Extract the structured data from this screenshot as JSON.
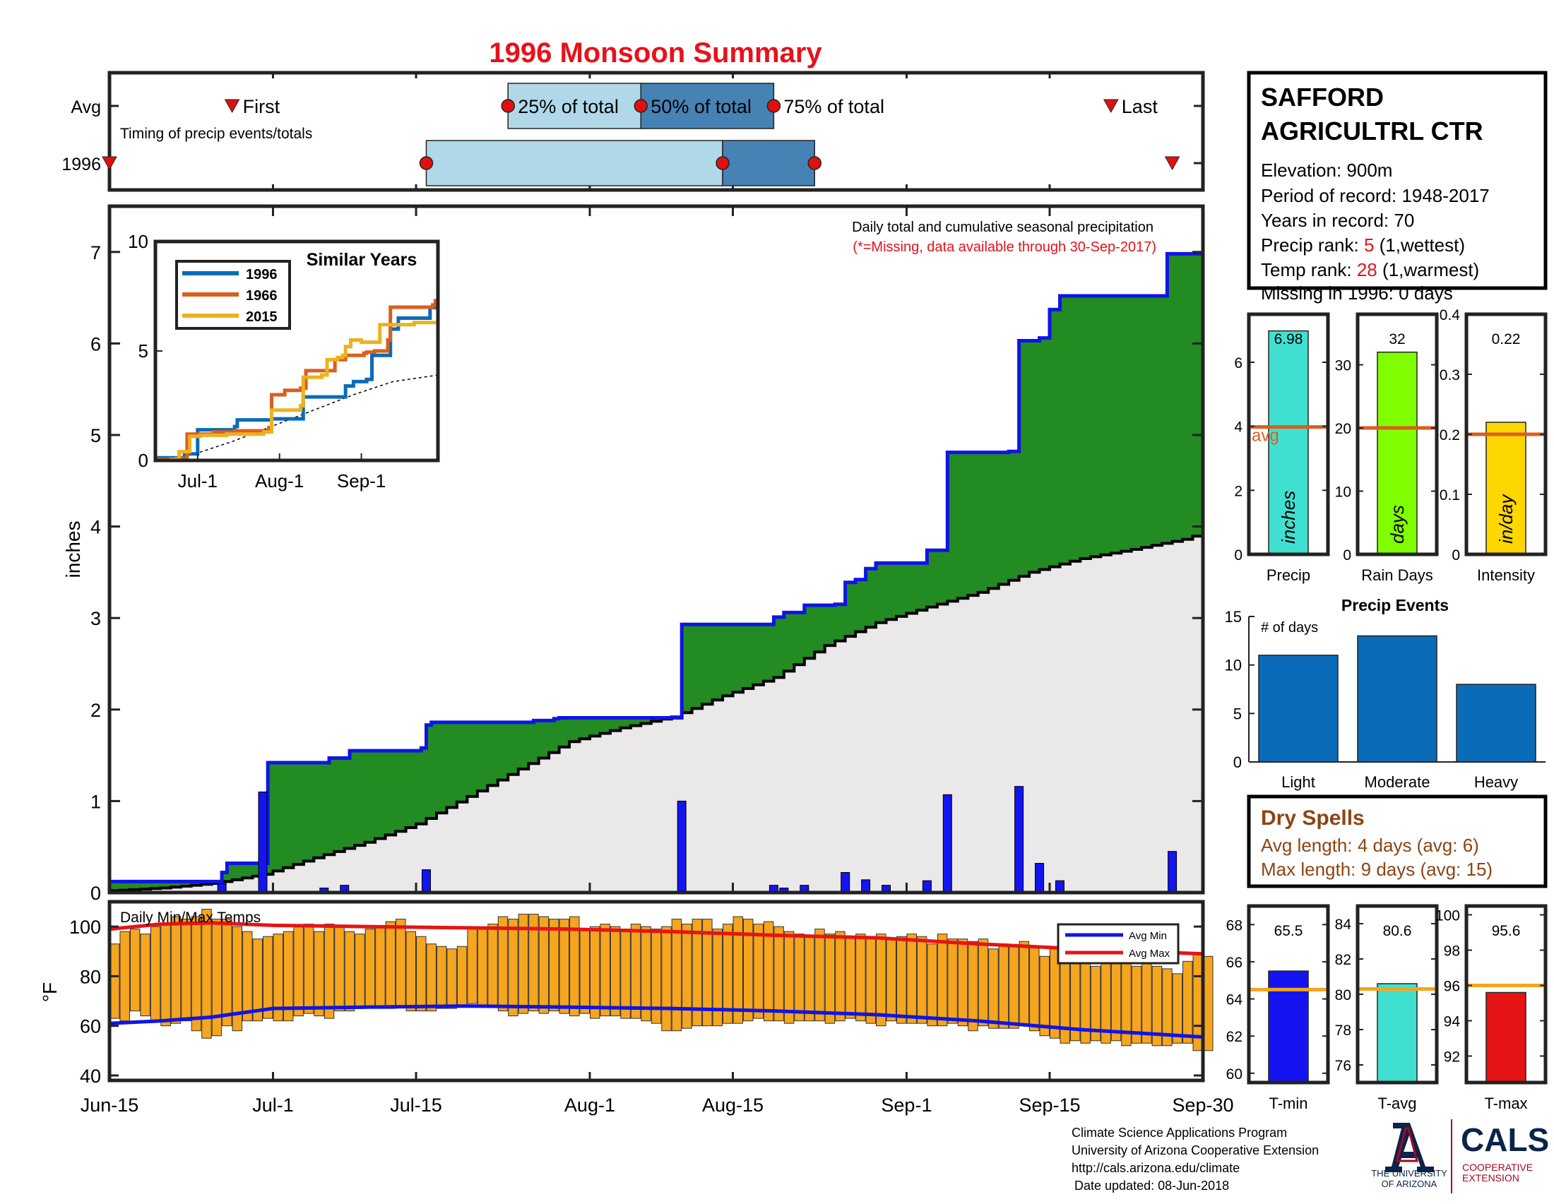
{
  "title": "1996 Monsoon Summary",
  "station": {
    "name_line1": "SAFFORD",
    "name_line2": "AGRICULTRL CTR",
    "elevation_text": "Elevation: 900m",
    "period_text": "Period of record: 1948-2017",
    "years_text": "Years in record: 70",
    "precip_rank_label": "Precip rank: ",
    "precip_rank_value": "5",
    "precip_rank_suffix": " (1,wettest)",
    "temp_rank_label": "Temp rank: ",
    "temp_rank_value": "28",
    "temp_rank_suffix": " (1,warmest)",
    "missing_text": "Missing in 1996: 0 days"
  },
  "colors": {
    "title_red": "#e8111a",
    "green_fill": "#228b22",
    "blue_line": "#0f14e6",
    "gray_fill": "#eae8e8",
    "light_blue": "#b0d8e8",
    "mid_blue": "#4682b4",
    "bar_blue": "#1414f0",
    "orange": "#f5a51e",
    "avg_orange": "#d95f1e",
    "temp_red": "#e61414",
    "precip_cyan": "#40e0d0",
    "raindays_green": "#80ff00",
    "intensity_yellow": "#ffd700",
    "events_blue": "#0a6cb8",
    "dry_brown": "#8b4513",
    "uofa_navy": "#0c234b",
    "uofa_red": "#ab0520"
  },
  "chart_data": [
    {
      "id": "timing",
      "type": "bar",
      "title": "",
      "annotation": "Timing of precip events/totals",
      "rows": [
        "Avg",
        "1996"
      ],
      "x_ticks": [
        "Jun-15",
        "Jul-1",
        "Jul-15",
        "Aug-1",
        "Aug-15",
        "Sep-1",
        "Sep-15",
        "Sep-30"
      ],
      "avg": {
        "first": "Jun-27",
        "q25": "Jul-24",
        "q50": "Aug-6",
        "q75": "Aug-19",
        "last": "Sep-21"
      },
      "year": {
        "first": "Jun-15",
        "q25": "Jul-16",
        "q50": "Aug-14",
        "q75": "Aug-23",
        "last": "Sep-27"
      },
      "labels": {
        "first": "First",
        "q25": "25% of total",
        "q50": "50% of total",
        "q75": "75% of total",
        "last": "Last"
      }
    },
    {
      "id": "precip",
      "type": "area",
      "title": "Daily total and cumulative seasonal precipitation",
      "subtitle": "(*=Missing, data available through 30-Sep-2017)",
      "ylabel": "inches",
      "ylim": [
        0,
        7.5
      ],
      "yticks": [
        0,
        1,
        2,
        3,
        4,
        5,
        6,
        7
      ],
      "x_ticks": [
        {
          "day": 0,
          "label": "Jun-15"
        },
        {
          "day": 16,
          "label": "Jul-1"
        },
        {
          "day": 30,
          "label": "Jul-15"
        },
        {
          "day": 47,
          "label": "Aug-1"
        },
        {
          "day": 61,
          "label": "Aug-15"
        },
        {
          "day": 78,
          "label": "Sep-1"
        },
        {
          "day": 92,
          "label": "Sep-15"
        },
        {
          "day": 107,
          "label": "Sep-30"
        }
      ],
      "daily_precip": [
        {
          "day": 11,
          "value": 0.1
        },
        {
          "day": 15,
          "value": 1.1
        },
        {
          "day": 21,
          "value": 0.05
        },
        {
          "day": 23,
          "value": 0.08
        },
        {
          "day": 31,
          "value": 0.25
        },
        {
          "day": 56,
          "value": 1.0
        },
        {
          "day": 65,
          "value": 0.08
        },
        {
          "day": 66,
          "value": 0.05
        },
        {
          "day": 68,
          "value": 0.08
        },
        {
          "day": 72,
          "value": 0.22
        },
        {
          "day": 74,
          "value": 0.14
        },
        {
          "day": 76,
          "value": 0.08
        },
        {
          "day": 80,
          "value": 0.13
        },
        {
          "day": 82,
          "value": 1.07
        },
        {
          "day": 89,
          "value": 1.16
        },
        {
          "day": 91,
          "value": 0.32
        },
        {
          "day": 93,
          "value": 0.13
        },
        {
          "day": 104,
          "value": 0.45
        }
      ],
      "cumulative_1996": [
        [
          0,
          0.12
        ],
        [
          10,
          0.12
        ],
        [
          11,
          0.22
        ],
        [
          11.5,
          0.32
        ],
        [
          15,
          0.32
        ],
        [
          15.5,
          1.42
        ],
        [
          21,
          1.42
        ],
        [
          21.5,
          1.47
        ],
        [
          23,
          1.47
        ],
        [
          23.5,
          1.55
        ],
        [
          30,
          1.55
        ],
        [
          30.5,
          1.58
        ],
        [
          31,
          1.83
        ],
        [
          31.5,
          1.86
        ],
        [
          41,
          1.86
        ],
        [
          41.5,
          1.88
        ],
        [
          43,
          1.88
        ],
        [
          43.5,
          1.9
        ],
        [
          44,
          1.91
        ],
        [
          55,
          1.91
        ],
        [
          56,
          2.93
        ],
        [
          64,
          2.93
        ],
        [
          65,
          3.01
        ],
        [
          66,
          3.06
        ],
        [
          68,
          3.14
        ],
        [
          71,
          3.15
        ],
        [
          72,
          3.39
        ],
        [
          73,
          3.42
        ],
        [
          74,
          3.54
        ],
        [
          75,
          3.6
        ],
        [
          80,
          3.74
        ],
        [
          81,
          3.74
        ],
        [
          82,
          4.81
        ],
        [
          88,
          4.82
        ],
        [
          89,
          6.03
        ],
        [
          91,
          6.06
        ],
        [
          92,
          6.37
        ],
        [
          93,
          6.52
        ],
        [
          103,
          6.52
        ],
        [
          103.5,
          6.98
        ],
        [
          107,
          6.98
        ]
      ],
      "cumulative_avg": [
        [
          0,
          0.02
        ],
        [
          5,
          0.05
        ],
        [
          10,
          0.1
        ],
        [
          15,
          0.2
        ],
        [
          20,
          0.38
        ],
        [
          25,
          0.55
        ],
        [
          30,
          0.75
        ],
        [
          35,
          1.05
        ],
        [
          40,
          1.35
        ],
        [
          45,
          1.65
        ],
        [
          50,
          1.8
        ],
        [
          55,
          1.92
        ],
        [
          60,
          2.15
        ],
        [
          65,
          2.35
        ],
        [
          70,
          2.7
        ],
        [
          75,
          2.95
        ],
        [
          80,
          3.12
        ],
        [
          85,
          3.28
        ],
        [
          90,
          3.5
        ],
        [
          95,
          3.65
        ],
        [
          100,
          3.75
        ],
        [
          105,
          3.86
        ],
        [
          107,
          3.93
        ]
      ]
    },
    {
      "id": "similar_years",
      "type": "line",
      "title": "Similar Years",
      "ylim": [
        0,
        10
      ],
      "yticks": [
        0,
        5,
        10
      ],
      "x_ticks": [
        {
          "day": 16,
          "label": "Jul-1"
        },
        {
          "day": 47,
          "label": "Aug-1"
        },
        {
          "day": 78,
          "label": "Sep-1"
        }
      ],
      "series": [
        {
          "name": "1996",
          "color": "#0a6cb8",
          "points": [
            [
              0,
              0.12
            ],
            [
              10,
              0.12
            ],
            [
              11,
              0.3
            ],
            [
              15,
              0.3
            ],
            [
              16,
              1.4
            ],
            [
              30,
              1.55
            ],
            [
              31,
              1.85
            ],
            [
              44,
              1.9
            ],
            [
              56,
              2.9
            ],
            [
              72,
              3.4
            ],
            [
              75,
              3.6
            ],
            [
              80,
              3.7
            ],
            [
              82,
              4.8
            ],
            [
              89,
              6.0
            ],
            [
              92,
              6.5
            ],
            [
              103,
              6.5
            ],
            [
              104,
              6.98
            ],
            [
              107,
              6.98
            ]
          ]
        },
        {
          "name": "1966",
          "color": "#d95f1e",
          "points": [
            [
              0,
              0.05
            ],
            [
              8,
              0.1
            ],
            [
              12,
              1.2
            ],
            [
              22,
              1.3
            ],
            [
              30,
              1.35
            ],
            [
              43,
              1.5
            ],
            [
              44,
              3.0
            ],
            [
              49,
              3.2
            ],
            [
              55,
              3.3
            ],
            [
              57,
              4.1
            ],
            [
              66,
              4.1
            ],
            [
              68,
              4.6
            ],
            [
              72,
              4.8
            ],
            [
              79,
              4.9
            ],
            [
              80,
              4.95
            ],
            [
              83,
              5.0
            ],
            [
              87,
              5.0
            ],
            [
              88,
              5.5
            ],
            [
              89,
              7.0
            ],
            [
              105,
              7.1
            ],
            [
              106,
              7.3
            ],
            [
              107,
              8.7
            ]
          ]
        },
        {
          "name": "2015",
          "color": "#edb120",
          "points": [
            [
              0,
              0.0
            ],
            [
              6,
              0.05
            ],
            [
              9,
              0.4
            ],
            [
              13,
              1.1
            ],
            [
              17,
              1.15
            ],
            [
              27,
              1.2
            ],
            [
              41,
              1.3
            ],
            [
              44,
              2.3
            ],
            [
              55,
              2.5
            ],
            [
              56,
              3.8
            ],
            [
              63,
              3.9
            ],
            [
              65,
              4.6
            ],
            [
              69,
              4.7
            ],
            [
              71,
              4.8
            ],
            [
              72,
              5.2
            ],
            [
              74,
              5.5
            ],
            [
              78,
              5.4
            ],
            [
              85,
              6.2
            ],
            [
              98,
              6.3
            ],
            [
              107,
              6.4
            ]
          ]
        }
      ],
      "avg_line": [
        [
          0,
          0.02
        ],
        [
          15,
          0.3
        ],
        [
          30,
          0.9
        ],
        [
          45,
          1.6
        ],
        [
          60,
          2.3
        ],
        [
          75,
          3.0
        ],
        [
          90,
          3.6
        ],
        [
          107,
          3.9
        ]
      ]
    },
    {
      "id": "temps",
      "type": "bar",
      "title": "Daily Min/Max Temps",
      "ylabel": "°F",
      "ylim": [
        38,
        110
      ],
      "yticks": [
        40,
        60,
        80,
        100
      ],
      "legend": [
        "Avg Min",
        "Avg Max"
      ],
      "daily_max": [
        93,
        98,
        99,
        97,
        100,
        101,
        104,
        103,
        104,
        107,
        103,
        103,
        100,
        98,
        95,
        96,
        97,
        98,
        100,
        101,
        98,
        101,
        100,
        98,
        97,
        99,
        100,
        102,
        103,
        98,
        96,
        93,
        92,
        91,
        92,
        100,
        99,
        101,
        104,
        103,
        105,
        105,
        104,
        103,
        103,
        104,
        99,
        100,
        101,
        100,
        99,
        101,
        100,
        99,
        100,
        103,
        101,
        103,
        103,
        99,
        101,
        104,
        103,
        101,
        102,
        100,
        98,
        97,
        96,
        99,
        97,
        98,
        96,
        97,
        95,
        97,
        95,
        96,
        97,
        96,
        93,
        97,
        95,
        95,
        94,
        95,
        91,
        93,
        92,
        94,
        92,
        88,
        91,
        89,
        86,
        87,
        84,
        86,
        86,
        88,
        84,
        85,
        84,
        83,
        81,
        86,
        89,
        88
      ],
      "daily_min": [
        63,
        62,
        66,
        64,
        62,
        60,
        61,
        62,
        58,
        55,
        56,
        60,
        58,
        62,
        62,
        63,
        62,
        62,
        64,
        65,
        64,
        63,
        66,
        66,
        67,
        68,
        67,
        67,
        68,
        66,
        66,
        66,
        67,
        67,
        68,
        69,
        68,
        68,
        66,
        64,
        65,
        66,
        65,
        66,
        65,
        64,
        65,
        63,
        64,
        64,
        63,
        63,
        62,
        61,
        58,
        58,
        59,
        60,
        60,
        60,
        61,
        61,
        62,
        63,
        62,
        62,
        61,
        62,
        62,
        62,
        61,
        62,
        63,
        62,
        61,
        60,
        62,
        61,
        61,
        61,
        60,
        60,
        61,
        60,
        58,
        60,
        59,
        59,
        59,
        60,
        58,
        56,
        55,
        53,
        54,
        53,
        54,
        53,
        54,
        52,
        53,
        53,
        52,
        52,
        53,
        53,
        50,
        50
      ],
      "avg_max": [
        [
          0,
          99
        ],
        [
          5,
          101
        ],
        [
          10,
          101.5
        ],
        [
          16,
          100.5
        ],
        [
          25,
          100
        ],
        [
          35,
          99.5
        ],
        [
          45,
          99
        ],
        [
          55,
          98
        ],
        [
          65,
          96.5
        ],
        [
          75,
          95.5
        ],
        [
          85,
          93
        ],
        [
          95,
          91
        ],
        [
          107,
          89
        ]
      ],
      "avg_min": [
        [
          0,
          61
        ],
        [
          5,
          62
        ],
        [
          10,
          63.5
        ],
        [
          16,
          67
        ],
        [
          25,
          67.5
        ],
        [
          35,
          68
        ],
        [
          45,
          67.5
        ],
        [
          55,
          67
        ],
        [
          65,
          66
        ],
        [
          75,
          64.5
        ],
        [
          85,
          62
        ],
        [
          95,
          58.5
        ],
        [
          107,
          55.5
        ]
      ]
    },
    {
      "id": "precip_stat",
      "type": "bar",
      "category": "Precip",
      "bar_label": "inches",
      "value": 6.98,
      "avg": 3.98,
      "avg_label": "avg",
      "ylim": [
        0,
        7.5
      ],
      "yticks": [
        0,
        2,
        4,
        6
      ]
    },
    {
      "id": "raindays_stat",
      "type": "bar",
      "category": "Rain Days",
      "bar_label": "days",
      "value": 32,
      "avg": 20,
      "ylim": [
        0,
        38
      ],
      "yticks": [
        0,
        10,
        20,
        30
      ]
    },
    {
      "id": "intensity_stat",
      "type": "bar",
      "category": "Intensity",
      "bar_label": "in/day",
      "value": 0.22,
      "avg": 0.2,
      "ylim": [
        0,
        0.4
      ],
      "yticks": [
        0,
        0.1,
        0.2,
        0.3,
        0.4
      ]
    },
    {
      "id": "precip_events",
      "type": "bar",
      "title": "Precip Events",
      "ylabel": "# of days",
      "categories": [
        "Light",
        "Moderate",
        "Heavy"
      ],
      "values": [
        11,
        13,
        8
      ],
      "ylim": [
        0,
        15
      ],
      "yticks": [
        0,
        5,
        10,
        15
      ]
    },
    {
      "id": "tmin_stat",
      "type": "bar",
      "category": "T-min",
      "value": 65.5,
      "avg": 64.5,
      "ylim": [
        59.5,
        69
      ],
      "yticks": [
        60,
        62,
        64,
        66,
        68
      ]
    },
    {
      "id": "tavg_stat",
      "type": "bar",
      "category": "T-avg",
      "value": 80.6,
      "avg": 80.3,
      "ylim": [
        75,
        85
      ],
      "yticks": [
        76,
        78,
        80,
        82,
        84
      ]
    },
    {
      "id": "tmax_stat",
      "type": "bar",
      "category": "T-max",
      "value": 95.6,
      "avg": 96.0,
      "ylim": [
        90.5,
        100.5
      ],
      "yticks": [
        92,
        94,
        96,
        98,
        100
      ]
    }
  ],
  "dry_spells": {
    "title": "Dry Spells",
    "avg_text": "Avg length: 4 days (avg: 6)",
    "max_text": "Max length: 9 days (avg: 15)"
  },
  "footer": {
    "line1": "Climate Science Applications Program",
    "line2": "University of Arizona Cooperative Extension",
    "line3": "http://cals.arizona.edu/climate",
    "line4": "Date updated: 08-Jun-2018"
  },
  "logos": {
    "ua_line1": "THE UNIVERSITY",
    "ua_line2": "OF ARIZONA",
    "cals_title": "CALS",
    "cals_line1": "COOPERATIVE",
    "cals_line2": "EXTENSION"
  }
}
